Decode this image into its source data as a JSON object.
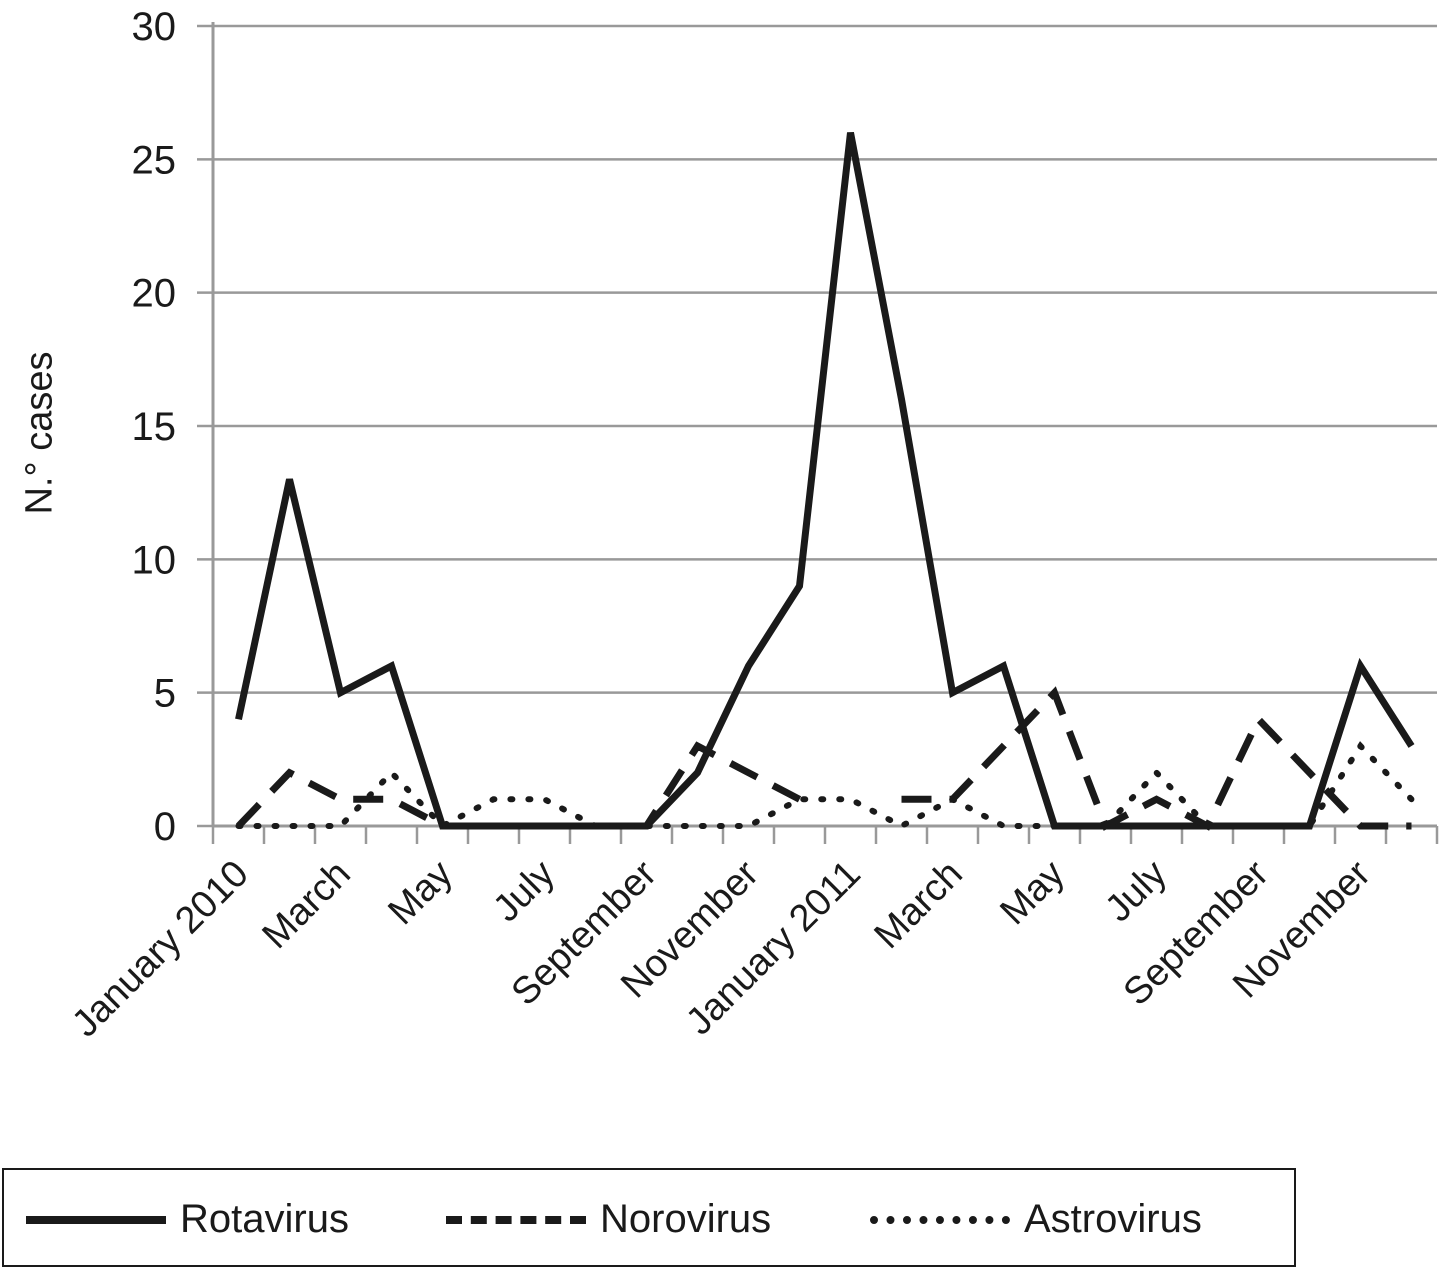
{
  "chart_data": {
    "type": "line",
    "ylabel": "N.° cases",
    "xlabel": "",
    "ylim": [
      0,
      30
    ],
    "yticks": [
      0,
      5,
      10,
      15,
      20,
      25,
      30
    ],
    "grid": true,
    "legend_position": "bottom",
    "categories": [
      "January 2010",
      "February 2010",
      "March 2010",
      "April 2010",
      "May 2010",
      "June 2010",
      "July 2010",
      "August 2010",
      "September 2010",
      "October 2010",
      "November 2010",
      "December 2010",
      "January 2011",
      "February 2011",
      "March 2011",
      "April 2011",
      "May 2011",
      "June 2011",
      "July 2011",
      "August 2011",
      "September 2011",
      "October 2011",
      "November 2011",
      "December 2011"
    ],
    "x_tick_labels": [
      "January 2010",
      "March",
      "May",
      "July",
      "September",
      "November",
      "January 2011",
      "March",
      "May",
      "July",
      "September",
      "November"
    ],
    "series": [
      {
        "name": "Rotavirus",
        "style": "solid",
        "values": [
          4,
          13,
          5,
          6,
          0,
          0,
          0,
          0,
          0,
          2,
          6,
          9,
          26,
          16,
          5,
          6,
          0,
          0,
          0,
          0,
          0,
          0,
          6,
          3
        ]
      },
      {
        "name": "Norovirus",
        "style": "dashed",
        "values": [
          0,
          2,
          1,
          1,
          0,
          0,
          0,
          0,
          0,
          3,
          2,
          1,
          null,
          1,
          1,
          3,
          5,
          0,
          1,
          0,
          4,
          2,
          0,
          0
        ]
      },
      {
        "name": "Astrovirus",
        "style": "dotted",
        "values": [
          0,
          0,
          0,
          2,
          0,
          1,
          1,
          0,
          0,
          0,
          0,
          1,
          1,
          0,
          1,
          0,
          0,
          0,
          2,
          0,
          0,
          0,
          3,
          1
        ]
      }
    ],
    "colors": {
      "series": "#1a1a1a",
      "grid": "#999999",
      "axis": "#999999"
    }
  }
}
